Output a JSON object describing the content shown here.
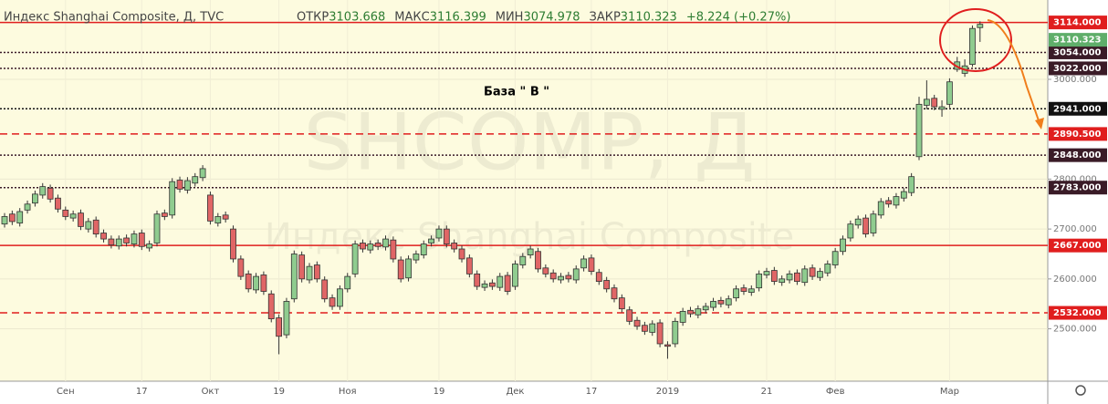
{
  "chart_data": {
    "type": "candlestick",
    "title": "Индекс Shanghai Composite, Д, TVC",
    "ohlc_legend": [
      {
        "label": "ОТКР",
        "value": 3103.668
      },
      {
        "label": "МАКС",
        "value": 3116.399
      },
      {
        "label": "МИН",
        "value": 3074.978
      },
      {
        "label": "ЗАКР",
        "value": 3110.323
      }
    ],
    "change": "+8.224 (+0.27%)",
    "watermark": "SHCOMP, Д",
    "watermark_sub": "Индекс Shanghai Composite",
    "annotation": "База  \" В \"",
    "up_color": "#8fcc8f",
    "down_color": "#e06666",
    "grid": true,
    "categories": [
      null,
      null,
      null,
      null,
      null,
      null,
      null,
      null,
      "Сен",
      null,
      null,
      null,
      null,
      null,
      null,
      null,
      null,
      null,
      "17",
      null,
      null,
      null,
      null,
      null,
      null,
      null,
      null,
      "Окт",
      null,
      null,
      null,
      null,
      null,
      null,
      null,
      null,
      "19",
      null,
      null,
      null,
      null,
      null,
      null,
      null,
      null,
      "Ноя",
      null,
      null,
      null,
      null,
      null,
      null,
      null,
      null,
      null,
      null,
      null,
      "19",
      null,
      null,
      null,
      null,
      null,
      null,
      null,
      null,
      null,
      "Дек",
      null,
      null,
      null,
      null,
      null,
      null,
      null,
      null,
      null,
      "17",
      null,
      null,
      null,
      null,
      null,
      null,
      null,
      null,
      null,
      "2019",
      null,
      null,
      null,
      null,
      null,
      null,
      null,
      null,
      null,
      null,
      null,
      null,
      "21",
      null,
      null,
      null,
      null,
      null,
      null,
      null,
      null,
      "Фев",
      null,
      null,
      null,
      null,
      null,
      null,
      null,
      null,
      null,
      null,
      null,
      null,
      null,
      null,
      "Мар",
      null,
      null,
      null,
      null
    ],
    "open": [
      2710,
      2730,
      2712,
      2738,
      2752,
      2768,
      2782,
      2762,
      2738,
      2722,
      2732,
      2700,
      2718,
      2692,
      2680,
      2666,
      2682,
      2670,
      2692,
      2662,
      2672,
      2732,
      2728,
      2798,
      2778,
      2792,
      2803,
      2768,
      2712,
      2728,
      2700,
      2640,
      2610,
      2578,
      2608,
      2570,
      2522,
      2488,
      2560,
      2648,
      2598,
      2628,
      2598,
      2562,
      2545,
      2580,
      2610,
      2672,
      2658,
      2672,
      2664,
      2678,
      2638,
      2602,
      2638,
      2648,
      2672,
      2682,
      2700,
      2672,
      2660,
      2642,
      2610,
      2583,
      2592,
      2583,
      2607,
      2585,
      2628,
      2648,
      2655,
      2622,
      2612,
      2598,
      2607,
      2598,
      2622,
      2642,
      2613,
      2597,
      2582,
      2562,
      2538,
      2517,
      2507,
      2493,
      2512,
      2468,
      2470,
      2513,
      2537,
      2528,
      2538,
      2543,
      2557,
      2548,
      2562,
      2582,
      2573,
      2582,
      2608,
      2617,
      2593,
      2598,
      2612,
      2593,
      2622,
      2603,
      2612,
      2628,
      2655,
      2682,
      2708,
      2722,
      2692,
      2728,
      2757,
      2748,
      2762,
      2773,
      2845,
      2948,
      2962,
      2940,
      2950,
      3020,
      3012,
      3030,
      3103.668
    ],
    "high": [
      2732,
      2737,
      2742,
      2757,
      2777,
      2792,
      2789,
      2769,
      2745,
      2737,
      2739,
      2722,
      2725,
      2699,
      2687,
      2687,
      2689,
      2697,
      2699,
      2677,
      2737,
      2739,
      2802,
      2805,
      2804,
      2812,
      2828,
      2775,
      2732,
      2735,
      2707,
      2647,
      2617,
      2612,
      2615,
      2577,
      2529,
      2562,
      2657,
      2655,
      2632,
      2635,
      2605,
      2569,
      2587,
      2612,
      2677,
      2679,
      2677,
      2679,
      2687,
      2685,
      2645,
      2647,
      2657,
      2677,
      2687,
      2707,
      2707,
      2679,
      2667,
      2649,
      2617,
      2597,
      2599,
      2612,
      2614,
      2637,
      2652,
      2667,
      2662,
      2629,
      2619,
      2612,
      2614,
      2627,
      2647,
      2649,
      2620,
      2604,
      2589,
      2569,
      2545,
      2524,
      2514,
      2517,
      2519,
      2475,
      2522,
      2542,
      2544,
      2547,
      2552,
      2562,
      2564,
      2567,
      2587,
      2589,
      2587,
      2617,
      2622,
      2624,
      2607,
      2617,
      2619,
      2627,
      2629,
      2622,
      2637,
      2662,
      2687,
      2717,
      2727,
      2729,
      2737,
      2762,
      2764,
      2772,
      2782,
      2812,
      2965,
      2998,
      2969,
      2958,
      3002,
      3045,
      3040,
      3108,
      3116.399
    ],
    "low": [
      2703,
      2708,
      2705,
      2731,
      2745,
      2761,
      2753,
      2733,
      2718,
      2715,
      2698,
      2693,
      2683,
      2673,
      2661,
      2659,
      2665,
      2663,
      2658,
      2655,
      2665,
      2718,
      2721,
      2773,
      2771,
      2785,
      2796,
      2709,
      2705,
      2713,
      2633,
      2598,
      2573,
      2571,
      2568,
      2513,
      2449,
      2481,
      2553,
      2593,
      2591,
      2593,
      2553,
      2538,
      2538,
      2573,
      2603,
      2653,
      2651,
      2658,
      2657,
      2633,
      2593,
      2595,
      2631,
      2641,
      2665,
      2675,
      2663,
      2653,
      2633,
      2603,
      2578,
      2576,
      2578,
      2576,
      2568,
      2578,
      2621,
      2641,
      2613,
      2603,
      2593,
      2591,
      2593,
      2591,
      2615,
      2608,
      2588,
      2573,
      2553,
      2533,
      2508,
      2498,
      2488,
      2486,
      2463,
      2440,
      2463,
      2506,
      2523,
      2521,
      2531,
      2536,
      2543,
      2541,
      2555,
      2568,
      2566,
      2575,
      2601,
      2588,
      2586,
      2591,
      2588,
      2586,
      2598,
      2596,
      2605,
      2621,
      2648,
      2675,
      2701,
      2683,
      2685,
      2721,
      2743,
      2741,
      2755,
      2766,
      2838,
      2940,
      2938,
      2925,
      2943,
      3015,
      3005,
      3025,
      3074.978
    ],
    "close": [
      2725,
      2715,
      2735,
      2750,
      2770,
      2785,
      2760,
      2740,
      2725,
      2730,
      2705,
      2715,
      2690,
      2680,
      2668,
      2680,
      2672,
      2690,
      2665,
      2670,
      2730,
      2725,
      2795,
      2780,
      2797,
      2805,
      2821,
      2716,
      2725,
      2720,
      2640,
      2605,
      2580,
      2605,
      2575,
      2520,
      2485,
      2555,
      2650,
      2600,
      2625,
      2600,
      2560,
      2545,
      2580,
      2605,
      2670,
      2660,
      2670,
      2665,
      2680,
      2640,
      2600,
      2640,
      2650,
      2670,
      2680,
      2700,
      2670,
      2660,
      2640,
      2610,
      2585,
      2590,
      2585,
      2605,
      2575,
      2630,
      2645,
      2660,
      2620,
      2610,
      2600,
      2605,
      2600,
      2620,
      2640,
      2615,
      2595,
      2580,
      2560,
      2540,
      2515,
      2505,
      2495,
      2510,
      2470,
      2465,
      2515,
      2535,
      2530,
      2540,
      2545,
      2555,
      2550,
      2560,
      2580,
      2575,
      2580,
      2610,
      2615,
      2595,
      2600,
      2610,
      2595,
      2620,
      2605,
      2615,
      2630,
      2655,
      2680,
      2710,
      2720,
      2690,
      2730,
      2755,
      2750,
      2765,
      2775,
      2805,
      2950,
      2960,
      2945,
      2945,
      2995,
      3035,
      3027,
      3102,
      3110.323
    ],
    "ylim": [
      2395,
      3159
    ],
    "yticks": [
      {
        "value": 2500,
        "label": "2500.000"
      },
      {
        "value": 2600,
        "label": "2600.000"
      },
      {
        "value": 2700,
        "label": "2700.000"
      },
      {
        "value": 2800,
        "label": "2800.000"
      },
      {
        "value": 3000,
        "label": "3000.000"
      }
    ],
    "levels": [
      {
        "value": 3114,
        "label": "3114.000",
        "style": "solid",
        "color": "#e01e1e"
      },
      {
        "value": 3054,
        "label": "3054.000",
        "style": "dotted",
        "color": "#3a1b27"
      },
      {
        "value": 3022,
        "label": "3022.000",
        "style": "dotted",
        "color": "#3a1b27"
      },
      {
        "value": 2941,
        "label": "2941.000",
        "style": "dotted",
        "color": "#111111"
      },
      {
        "value": 2890.5,
        "label": "2890.500",
        "style": "dashed",
        "color": "#e01e1e"
      },
      {
        "value": 2848,
        "label": "2848.000",
        "style": "dotted",
        "color": "#3a1b27"
      },
      {
        "value": 2783,
        "label": "2783.000",
        "style": "dotted",
        "color": "#3a1b27"
      },
      {
        "value": 2667,
        "label": "2667.000",
        "style": "solid",
        "color": "#e01e1e"
      },
      {
        "value": 2532,
        "label": "2532.000",
        "style": "dashed",
        "color": "#e01e1e"
      }
    ],
    "last_price_color": "#5fae6a"
  }
}
